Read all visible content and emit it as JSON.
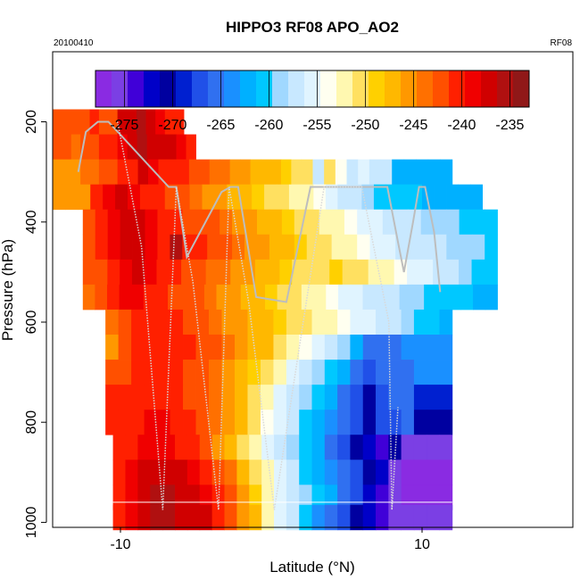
{
  "chart_data": {
    "type": "heatmap",
    "title": "HIPPO3 RF08 APO_AO2",
    "date_label": "20100410",
    "flight_label": "RF08",
    "xlabel": "Latitude (°N)",
    "ylabel": "Pressure (hPa)",
    "xlim": [
      -14.5,
      20
    ],
    "ylim": [
      1010,
      60
    ],
    "y_reversed": true,
    "x_ticks": [
      -10,
      10
    ],
    "y_ticks": [
      200,
      400,
      600,
      800,
      1000
    ],
    "grid": false,
    "colorbar": {
      "placement": "top-inside",
      "range": [
        -278,
        -233
      ],
      "ticks": [
        -275,
        -270,
        -265,
        -260,
        -255,
        -250,
        -245,
        -240,
        -235
      ],
      "colors": [
        "#8a2be2",
        "#7b3fe4",
        "#4000d8",
        "#0000c8",
        "#0000a0",
        "#0020d0",
        "#2050e8",
        "#3070f0",
        "#1a90ff",
        "#00b0ff",
        "#00c8ff",
        "#a0d8ff",
        "#c8e8ff",
        "#e0f4ff",
        "#fffff0",
        "#fff8b0",
        "#ffe060",
        "#ffd000",
        "#ffb800",
        "#ff9800",
        "#ff7000",
        "#ff5000",
        "#ff2000",
        "#f00000",
        "#d00000",
        "#b01010",
        "#901818"
      ]
    },
    "rows": [
      {
        "p": 200,
        "x0": -14.5,
        "x1": -10.2,
        "v": [
          -243,
          -243,
          -242,
          -243,
          -241,
          -242,
          -243
        ]
      },
      {
        "p": 200,
        "x0": -10.2,
        "x1": -5.8,
        "v": [
          -237,
          -237,
          -236,
          -237,
          -239,
          -240,
          -241
        ]
      },
      {
        "p": 250,
        "x0": -14.5,
        "x1": -10.2,
        "v": [
          -243,
          -243,
          -244,
          -243,
          -242,
          -241,
          -240
        ]
      },
      {
        "p": 250,
        "x0": -10.2,
        "x1": -5.0,
        "v": [
          -239,
          -237,
          -236,
          -237,
          -238,
          -237,
          -239,
          -240
        ]
      },
      {
        "p": 300,
        "x0": -14.5,
        "x1": -10.2,
        "v": [
          -245,
          -246,
          -245,
          -244,
          -244,
          -243,
          -242
        ]
      },
      {
        "p": 300,
        "x0": -10.2,
        "x1": 2.0,
        "v": [
          -240,
          -240,
          -238,
          -239,
          -240,
          -241,
          -241,
          -242,
          -243,
          -244,
          -244,
          -245,
          -246,
          -247,
          -248,
          -248,
          -249,
          -250
        ]
      },
      {
        "p": 300,
        "x0": 2.0,
        "x1": 8.0,
        "v": [
          -250,
          -258,
          -251,
          -254,
          -257,
          -256,
          -257,
          -258
        ]
      },
      {
        "p": 300,
        "x0": 8.0,
        "x1": 12.0,
        "v": [
          -263,
          -262,
          -263,
          -262,
          -263
        ]
      },
      {
        "p": 350,
        "x0": -14.5,
        "x1": -12.0,
        "v": [
          -245,
          -246,
          -245
        ]
      },
      {
        "p": 350,
        "x0": -12.0,
        "x1": 2.0,
        "v": [
          -241,
          -239,
          -238,
          -239,
          -240,
          -241,
          -242,
          -243,
          -244,
          -245,
          -246,
          -247,
          -248,
          -249,
          -250,
          -251,
          -252
        ]
      },
      {
        "p": 350,
        "x0": 2.0,
        "x1": 14.0,
        "v": [
          -253,
          -254,
          -256,
          -257,
          -258,
          -259,
          -260,
          -260,
          -261,
          -261,
          -262,
          -262,
          -263,
          -263,
          -262
        ]
      },
      {
        "p": 400,
        "x0": -12.5,
        "x1": 4.0,
        "v": [
          -242,
          -240,
          -239,
          -238,
          -238,
          -239,
          -240,
          -241,
          -242,
          -242,
          -243,
          -244,
          -245,
          -246,
          -247,
          -248,
          -249,
          -250,
          -251,
          -252
        ]
      },
      {
        "p": 400,
        "x0": 4.0,
        "x1": 15.0,
        "v": [
          -253,
          -254,
          -255,
          -256,
          -257,
          -258,
          -258,
          -259,
          -259,
          -259,
          -260,
          -260,
          -260
        ]
      },
      {
        "p": 450,
        "x0": -12.5,
        "x1": 4.0,
        "v": [
          -243,
          -241,
          -239,
          -238,
          -238,
          -239,
          -240,
          -236,
          -240,
          -241,
          -242,
          -243,
          -244,
          -245,
          -246,
          -247,
          -248,
          -249,
          -250,
          -251
        ]
      },
      {
        "p": 450,
        "x0": 4.0,
        "x1": 15.0,
        "v": [
          -252,
          -253,
          -254,
          -255,
          -256,
          -257,
          -257,
          -258,
          -258,
          -259,
          -259,
          -259,
          -260
        ]
      },
      {
        "p": 500,
        "x0": -12.5,
        "x1": 3.0,
        "v": [
          -243,
          -242,
          -240,
          -239,
          -238,
          -239,
          -240,
          -241,
          -242,
          -243,
          -244,
          -244,
          -245,
          -246,
          -247,
          -248,
          -249,
          -250,
          -250
        ]
      },
      {
        "p": 500,
        "x0": 3.0,
        "x1": 15.0,
        "v": [
          -250,
          -249,
          -250,
          -251,
          -252,
          -253,
          -254,
          -255,
          -256,
          -257,
          -258,
          -259,
          -260,
          -261
        ]
      },
      {
        "p": 550,
        "x0": -12.5,
        "x1": 2.0,
        "v": [
          -244,
          -242,
          -240,
          -239,
          -239,
          -240,
          -241,
          -242,
          -243,
          -243,
          -244,
          -245,
          -246,
          -247,
          -248,
          -249,
          -250,
          -251
        ]
      },
      {
        "p": 550,
        "x0": 2.0,
        "x1": 15.0,
        "v": [
          -252,
          -253,
          -254,
          -255,
          -256,
          -257,
          -258,
          -258,
          -259,
          -259,
          -260,
          -260,
          -261,
          -261,
          -262,
          -262
        ]
      },
      {
        "p": 600,
        "x0": -11.0,
        "x1": 1.0,
        "v": [
          -244,
          -242,
          -240,
          -240,
          -240,
          -241,
          -242,
          -243,
          -244,
          -245,
          -246,
          -247,
          -248,
          -249
        ]
      },
      {
        "p": 600,
        "x0": 1.0,
        "x1": 12.0,
        "v": [
          -250,
          -251,
          -252,
          -253,
          -254,
          -255,
          -256,
          -257,
          -258,
          -259,
          -260,
          -261,
          -262
        ]
      },
      {
        "p": 650,
        "x0": -11.0,
        "x1": 1.0,
        "v": [
          -245,
          -243,
          -241,
          -240,
          -240,
          -241,
          -241,
          -242,
          -243,
          -244,
          -245,
          -247,
          -248,
          -250
        ]
      },
      {
        "p": 650,
        "x0": 1.0,
        "x1": 12.0,
        "v": [
          -252,
          -254,
          -256,
          -258,
          -259,
          -262,
          -265,
          -266,
          -265,
          -264,
          -264,
          -264,
          -264
        ]
      },
      {
        "p": 700,
        "x0": -11.0,
        "x1": 1.0,
        "v": [
          -243,
          -242,
          -241,
          -240,
          -240,
          -241,
          -242,
          -243,
          -244,
          -245,
          -247,
          -249,
          -251,
          -253
        ]
      },
      {
        "p": 700,
        "x0": 1.0,
        "x1": 12.0,
        "v": [
          -255,
          -257,
          -259,
          -261,
          -263,
          -266,
          -268,
          -266,
          -265,
          -265,
          -264,
          -264,
          -264
        ]
      },
      {
        "p": 750,
        "x0": -11.0,
        "x1": 1.0,
        "v": [
          -241,
          -241,
          -240,
          -240,
          -240,
          -241,
          -242,
          -243,
          -244,
          -246,
          -248,
          -250,
          -253,
          -255
        ]
      },
      {
        "p": 750,
        "x0": 1.0,
        "x1": 12.0,
        "v": [
          -257,
          -259,
          -261,
          -263,
          -265,
          -268,
          -270,
          -267,
          -266,
          -265,
          -269,
          -269,
          -269
        ]
      },
      {
        "p": 800,
        "x0": -11.0,
        "x1": 1.0,
        "v": [
          -240,
          -240,
          -240,
          -239,
          -239,
          -240,
          -241,
          -242,
          -244,
          -246,
          -248,
          -251,
          -254,
          -256
        ]
      },
      {
        "p": 800,
        "x0": 1.0,
        "x1": 12.0,
        "v": [
          -258,
          -260,
          -262,
          -264,
          -266,
          -268,
          -271,
          -268,
          -267,
          -266,
          -270,
          -270,
          -270
        ]
      },
      {
        "p": 850,
        "x0": -10.5,
        "x1": 1.0,
        "v": [
          -240,
          -240,
          -239,
          -239,
          -239,
          -240,
          -241,
          -243,
          -245,
          -247,
          -250,
          -252,
          -255,
          -257
        ]
      },
      {
        "p": 850,
        "x0": 1.0,
        "x1": 12.0,
        "v": [
          -259,
          -261,
          -263,
          -265,
          -267,
          -270,
          -272,
          -274,
          -270,
          -275,
          -276,
          -276,
          -276
        ]
      },
      {
        "p": 900,
        "x0": -10.5,
        "x1": 1.0,
        "v": [
          -240,
          -239,
          -238,
          -237,
          -237,
          -238,
          -239,
          -240,
          -242,
          -244,
          -247,
          -250,
          -253,
          -256
        ]
      },
      {
        "p": 900,
        "x0": 1.0,
        "x1": 12.0,
        "v": [
          -258,
          -260,
          -262,
          -264,
          -266,
          -268,
          -271,
          -273,
          -275,
          -277,
          -277,
          -277,
          -277
        ]
      },
      {
        "p": 950,
        "x0": -10.5,
        "x1": 1.0,
        "v": [
          -240,
          -239,
          -237,
          -236,
          -236,
          -237,
          -238,
          -239,
          -241,
          -243,
          -246,
          -249,
          -252,
          -255
        ]
      },
      {
        "p": 950,
        "x0": 1.0,
        "x1": 12.0,
        "v": [
          -257,
          -259,
          -261,
          -263,
          -265,
          -268,
          -272,
          -274,
          -276,
          -278,
          -278,
          -278,
          -278
        ]
      },
      {
        "p": 990,
        "x0": -10.5,
        "x1": 1.0,
        "v": [
          -240,
          -239,
          -237,
          -236,
          -236,
          -237,
          -237,
          -238,
          -240,
          -242,
          -245,
          -248,
          -252,
          -256
        ]
      },
      {
        "p": 990,
        "x0": 1.0,
        "x1": 12.0,
        "v": [
          -258,
          -261,
          -264,
          -266,
          -268,
          -270,
          -272,
          -274,
          -275,
          -276,
          -276,
          -276,
          -276
        ]
      }
    ],
    "flight_track_gray": [
      [
        -12.8,
        300
      ],
      [
        -12.3,
        220
      ],
      [
        -11.5,
        200
      ],
      [
        -10.8,
        200
      ],
      [
        -6.8,
        330
      ],
      [
        -6.3,
        330
      ],
      [
        -5.6,
        470
      ],
      [
        -3.3,
        340
      ],
      [
        -2.7,
        330
      ],
      [
        -2.2,
        330
      ],
      [
        -1.0,
        550
      ],
      [
        1.0,
        560
      ],
      [
        2.6,
        330
      ],
      [
        3.2,
        330
      ],
      [
        3.6,
        330
      ],
      [
        4.0,
        330
      ],
      [
        6.8,
        330
      ],
      [
        7.7,
        330
      ],
      [
        8.4,
        440
      ],
      [
        8.8,
        500
      ],
      [
        9.4,
        400
      ],
      [
        9.8,
        330
      ],
      [
        10.2,
        330
      ],
      [
        10.8,
        420
      ],
      [
        11.2,
        540
      ]
    ],
    "flight_track_dotted": [
      [
        -10.2,
        200
      ],
      [
        -8.6,
        450
      ],
      [
        -7.2,
        975
      ],
      [
        -6.3,
        330
      ],
      [
        -5.2,
        520
      ],
      [
        -3.5,
        975
      ],
      [
        -2.8,
        330
      ],
      [
        -1.5,
        560
      ],
      [
        0.2,
        975
      ],
      [
        1.5,
        720
      ],
      [
        3.5,
        330
      ],
      [
        6.0,
        330
      ],
      [
        7.8,
        600
      ],
      [
        8.0,
        975
      ],
      [
        8.4,
        770
      ]
    ],
    "surface_line_p": 960
  }
}
